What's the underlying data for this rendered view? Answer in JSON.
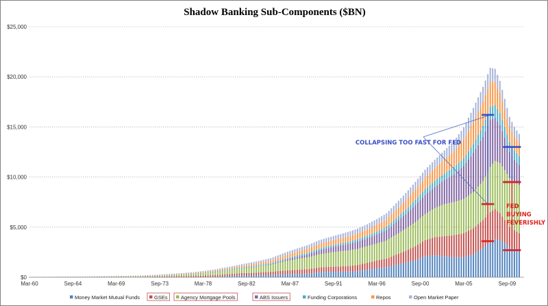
{
  "chart_data": {
    "type": "bar",
    "stacked": true,
    "title": "Shadow Banking Sub-Components ($BN)",
    "xlabel": "",
    "ylabel": "",
    "ylim": [
      0,
      25000
    ],
    "yticks": [
      0,
      5000,
      10000,
      15000,
      20000,
      25000
    ],
    "ytick_labels": [
      "$0",
      "$5,000",
      "$10,000",
      "$15,000",
      "$20,000",
      "$25,000"
    ],
    "grid": "horizontal-dashed",
    "x_range": [
      1960.25,
      2011.5
    ],
    "xtick_labels": [
      "Mar-60",
      "Sep-64",
      "Mar-69",
      "Sep-73",
      "Mar-78",
      "Sep-82",
      "Mar-87",
      "Sep-91",
      "Mar-96",
      "Sep-00",
      "Mar-05",
      "Sep-09"
    ],
    "xtick_years": [
      1960.25,
      1964.75,
      1969.25,
      1973.75,
      1978.25,
      1982.75,
      1987.25,
      1991.75,
      1996.25,
      2000.75,
      2005.25,
      2009.75
    ],
    "x": [
      1960.25,
      1961.25,
      1962.25,
      1963.25,
      1964.25,
      1965.25,
      1966.25,
      1967.25,
      1968.25,
      1969.25,
      1970.25,
      1971.25,
      1972.25,
      1973.25,
      1974.25,
      1975.25,
      1976.25,
      1977.25,
      1978.25,
      1979.25,
      1980.25,
      1981.25,
      1982.25,
      1983.25,
      1984.25,
      1985.25,
      1986.25,
      1987.25,
      1988.25,
      1989.25,
      1990.25,
      1991.25,
      1992.25,
      1993.25,
      1994.25,
      1995.25,
      1996.25,
      1997.25,
      1998.25,
      1999.25,
      2000.25,
      2001.25,
      2002.25,
      2003.25,
      2004.25,
      2005.25,
      2006.25,
      2007.25,
      2008.0,
      2008.5,
      2009.0,
      2009.5,
      2010.0,
      2010.5,
      2011.0
    ],
    "series": [
      {
        "name": "Money Market Mutual Funds",
        "color": "#4f81bd",
        "values": [
          0,
          0,
          0,
          0,
          0,
          0,
          0,
          0,
          0,
          0,
          0,
          0,
          0,
          0,
          5,
          10,
          15,
          20,
          30,
          50,
          100,
          150,
          200,
          200,
          230,
          240,
          290,
          320,
          340,
          360,
          500,
          540,
          550,
          560,
          600,
          740,
          890,
          1000,
          1250,
          1450,
          1700,
          2100,
          2200,
          2100,
          2000,
          2000,
          2300,
          2900,
          3500,
          3800,
          3700,
          3400,
          3000,
          2900,
          2700
        ]
      },
      {
        "name": "GSEs",
        "color": "#c0504d",
        "values": [
          10,
          12,
          14,
          16,
          18,
          20,
          25,
          30,
          35,
          40,
          45,
          50,
          60,
          70,
          80,
          90,
          100,
          110,
          130,
          150,
          170,
          190,
          210,
          230,
          260,
          300,
          350,
          380,
          420,
          460,
          480,
          500,
          520,
          560,
          620,
          700,
          780,
          860,
          1000,
          1200,
          1400,
          1600,
          1800,
          2000,
          2200,
          2400,
          2600,
          2800,
          3000,
          3000,
          2700,
          2300,
          2000,
          1800,
          1700
        ]
      },
      {
        "name": "Agency Mortgage Pools",
        "color": "#9bbb59",
        "values": [
          5,
          6,
          7,
          8,
          9,
          10,
          12,
          14,
          16,
          20,
          25,
          30,
          40,
          60,
          80,
          100,
          130,
          170,
          220,
          280,
          340,
          390,
          470,
          560,
          620,
          700,
          850,
          1000,
          1100,
          1200,
          1300,
          1400,
          1500,
          1550,
          1600,
          1650,
          1700,
          1800,
          2000,
          2200,
          2400,
          2600,
          2900,
          3200,
          3300,
          3400,
          3600,
          3900,
          4500,
          4800,
          5000,
          5000,
          4900,
          4800,
          4800
        ]
      },
      {
        "name": "ABS Issuers",
        "color": "#8064a2",
        "values": [
          0,
          0,
          0,
          0,
          0,
          0,
          0,
          0,
          0,
          0,
          0,
          0,
          0,
          0,
          0,
          0,
          0,
          0,
          0,
          0,
          0,
          0,
          0,
          10,
          30,
          60,
          100,
          150,
          230,
          310,
          400,
          480,
          560,
          640,
          730,
          800,
          900,
          1050,
          1250,
          1450,
          1700,
          1900,
          2100,
          2400,
          2800,
          3300,
          3900,
          4400,
          4700,
          4300,
          3800,
          3200,
          2600,
          2200,
          2000
        ]
      },
      {
        "name": "Funding Corporations",
        "color": "#4bacc6",
        "values": [
          10,
          11,
          12,
          13,
          14,
          15,
          17,
          19,
          21,
          23,
          25,
          28,
          31,
          34,
          37,
          40,
          45,
          50,
          55,
          60,
          70,
          80,
          90,
          100,
          110,
          120,
          130,
          150,
          160,
          170,
          180,
          190,
          200,
          220,
          240,
          260,
          290,
          320,
          380,
          450,
          520,
          580,
          620,
          650,
          700,
          750,
          900,
          1100,
          1300,
          1300,
          1200,
          1100,
          1000,
          950,
          900
        ]
      },
      {
        "name": "Repos",
        "color": "#f79646",
        "values": [
          5,
          6,
          7,
          8,
          9,
          10,
          12,
          14,
          16,
          18,
          20,
          25,
          30,
          40,
          50,
          60,
          70,
          80,
          90,
          100,
          120,
          140,
          160,
          190,
          220,
          260,
          300,
          340,
          380,
          420,
          450,
          470,
          500,
          540,
          580,
          620,
          680,
          750,
          850,
          950,
          1050,
          1150,
          1250,
          1400,
          1600,
          1900,
          2200,
          2400,
          2500,
          2300,
          2000,
          1700,
          1500,
          1400,
          1300
        ]
      },
      {
        "name": "Open Market Paper",
        "color": "#a5b2d8",
        "values": [
          5,
          6,
          7,
          8,
          9,
          10,
          12,
          14,
          16,
          20,
          25,
          30,
          35,
          40,
          50,
          60,
          70,
          80,
          90,
          110,
          130,
          150,
          170,
          190,
          210,
          230,
          260,
          290,
          320,
          340,
          380,
          400,
          420,
          450,
          480,
          520,
          560,
          600,
          650,
          700,
          750,
          800,
          850,
          900,
          1000,
          1200,
          1400,
          1500,
          1400,
          1300,
          1200,
          1100,
          1000,
          950,
          900
        ]
      }
    ],
    "legend_position": "bottom",
    "annotations": [
      {
        "text": "COLLAPSING TOO FAST FOR FED",
        "color": "#3a4fc4"
      },
      {
        "text": "FED",
        "color": "#e02020"
      },
      {
        "text": "BUYING",
        "color": "#e02020"
      },
      {
        "text": "FEVERISHLY",
        "color": "#e02020"
      }
    ],
    "bracket_levels": {
      "blue_left": [
        16200,
        7300
      ],
      "red_left": [
        7300,
        3600
      ],
      "blue_right": [
        13000,
        9500
      ],
      "red_right": [
        9500,
        2700
      ]
    }
  }
}
